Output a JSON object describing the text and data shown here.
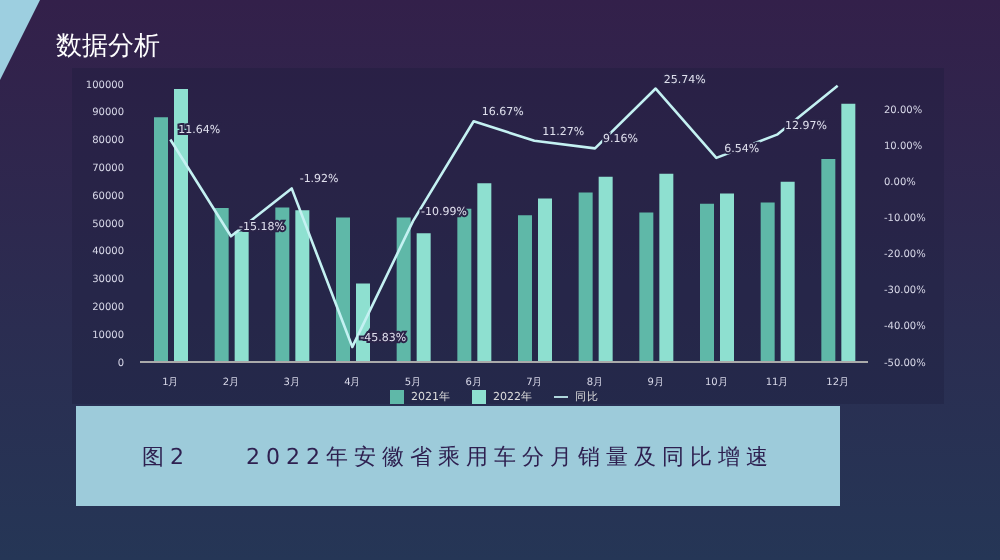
{
  "chart_data": {
    "type": "bar",
    "title": "数据分析",
    "subtitle": "图2　　2022年安徽省乘用车分月销量及同比增速",
    "categories": [
      "1月",
      "2月",
      "3月",
      "4月",
      "5月",
      "6月",
      "7月",
      "8月",
      "9月",
      "10月",
      "11月",
      "12月"
    ],
    "series": [
      {
        "name": "2021年",
        "color": "#5fb8a8",
        "values": [
          88000,
          55400,
          55600,
          52000,
          52000,
          55100,
          52800,
          61000,
          53800,
          56900,
          57400,
          73000
        ]
      },
      {
        "name": "2022年",
        "color": "#8ee0d0",
        "values": [
          98200,
          46900,
          54600,
          28200,
          46300,
          64300,
          58800,
          66600,
          67700,
          60600,
          64800,
          92900
        ]
      },
      {
        "name": "同比",
        "type": "line",
        "axis": "y2",
        "color": "#c4f1f2",
        "values": [
          11.64,
          -15.18,
          -1.92,
          -45.83,
          -10.99,
          16.67,
          11.27,
          9.16,
          25.74,
          6.54,
          12.97,
          26.5
        ],
        "value_labels": [
          "11.64%",
          "-15.18%",
          "-1.92%",
          "-45.83%",
          "-10.99%",
          "16.67%",
          "11.27%",
          "9.16%",
          "25.74%",
          "6.54%",
          "12.97%",
          null
        ]
      }
    ],
    "ylim": [
      0,
      100000
    ],
    "yticks": [
      0,
      10000,
      20000,
      30000,
      40000,
      50000,
      60000,
      70000,
      80000,
      90000,
      100000
    ],
    "y2lim": [
      -50,
      27
    ],
    "y2ticks": [
      {
        "value": -50,
        "label": "-50.00%"
      },
      {
        "value": -40,
        "label": "-40.00%"
      },
      {
        "value": -30,
        "label": "-30.00%"
      },
      {
        "value": -20,
        "label": "-20.00%"
      },
      {
        "value": -10,
        "label": "-10.00%"
      },
      {
        "value": 0,
        "label": "0.00%"
      },
      {
        "value": 10,
        "label": "10.00%"
      },
      {
        "value": 20,
        "label": "20.00%"
      }
    ],
    "legend": "bottom",
    "grid": false,
    "marker": "none",
    "line_style": "solid"
  }
}
